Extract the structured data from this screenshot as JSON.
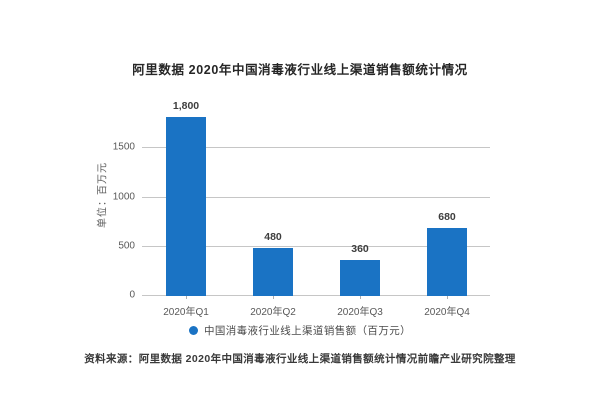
{
  "chart_data": {
    "type": "bar",
    "title": "阿里数据 2020年中国消毒液行业线上渠道销售额统计情况",
    "categories": [
      "2020年Q1",
      "2020年Q2",
      "2020年Q3",
      "2020年Q4"
    ],
    "values": [
      1800,
      480,
      360,
      680
    ],
    "value_labels": [
      "1,800",
      "480",
      "360",
      "680"
    ],
    "xlabel": "",
    "ylabel": "单位：百万元",
    "yticks": [
      0,
      500,
      1000,
      1500
    ],
    "ylim": [
      0,
      1890
    ],
    "grid": "horizontal-only",
    "legend_position": "bottom",
    "legend_label": "中国消毒液行业线上渠道销售额（百万元）",
    "bar_color": "#1a73c4"
  },
  "source_note": "资料来源：阿里数据 2020年中国消毒液行业线上渠道销售额统计情况前瞻产业研究院整理",
  "colors": {
    "bar": "#1a73c4",
    "gridline": "#c6c6c6",
    "tick_text": "#595959",
    "label_text": "#3d3d3d",
    "background": "#ffffff"
  }
}
